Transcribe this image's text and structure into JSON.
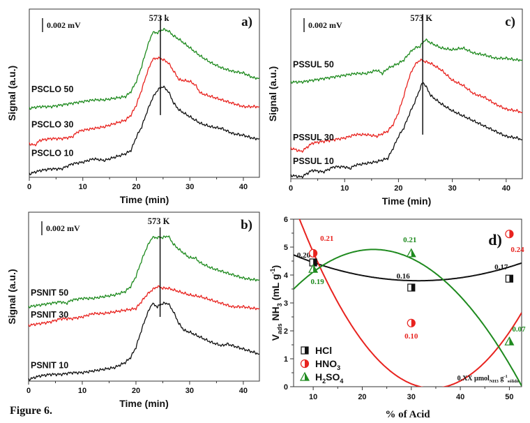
{
  "figure_caption": "Figure 6.",
  "colors": {
    "black": "#111111",
    "red": "#e8231f",
    "green": "#1e8a1e"
  },
  "chart_data": [
    {
      "id": "a",
      "type": "line",
      "panel_label": "a)",
      "xlabel": "Time (min)",
      "ylabel": "Signal  (a.u.)",
      "xlim": [
        0,
        43
      ],
      "xticks": [
        0,
        10,
        20,
        30,
        40
      ],
      "ylim": [
        0,
        1
      ],
      "y_unit_note": "signal normalized to plot height (arbitrary units)",
      "scale_bar_label": "0.002 mV",
      "marker_line": {
        "x": 24.5,
        "label": "573 k",
        "y_from": 0.37,
        "y_to": 0.96
      },
      "series": [
        {
          "name": "PSCLO 50",
          "color": "green",
          "label_at": [
            0,
            0.49
          ],
          "x": [
            0,
            2,
            4,
            6,
            8,
            10,
            12,
            14,
            16,
            18,
            19,
            20,
            21,
            22,
            23,
            24,
            25,
            26,
            27,
            28,
            30,
            32,
            34,
            36,
            38,
            40,
            42,
            43
          ],
          "y": [
            0.41,
            0.42,
            0.42,
            0.43,
            0.44,
            0.45,
            0.46,
            0.46,
            0.47,
            0.48,
            0.51,
            0.57,
            0.66,
            0.77,
            0.86,
            0.86,
            0.88,
            0.87,
            0.84,
            0.82,
            0.77,
            0.72,
            0.68,
            0.65,
            0.63,
            0.62,
            0.59,
            0.59
          ]
        },
        {
          "name": "PSCLO 30",
          "color": "red",
          "label_at": [
            0,
            0.28
          ],
          "x": [
            0,
            1,
            2,
            4,
            6,
            8,
            9,
            10,
            12,
            14,
            16,
            18,
            19,
            20,
            21,
            22,
            23,
            24,
            25,
            26,
            27,
            28,
            30,
            31,
            32,
            34,
            36,
            38,
            40,
            42,
            43
          ],
          "y": [
            0.2,
            0.19,
            0.22,
            0.23,
            0.23,
            0.24,
            0.27,
            0.28,
            0.29,
            0.3,
            0.32,
            0.34,
            0.37,
            0.43,
            0.52,
            0.62,
            0.7,
            0.71,
            0.7,
            0.68,
            0.63,
            0.58,
            0.57,
            0.55,
            0.5,
            0.48,
            0.46,
            0.44,
            0.42,
            0.42,
            0.42
          ]
        },
        {
          "name": "PSCLO 10",
          "color": "black",
          "label_at": [
            0,
            0.11
          ],
          "x": [
            0,
            2,
            4,
            6,
            8,
            10,
            12,
            14,
            16,
            18,
            19,
            20,
            21,
            22,
            23,
            24,
            25,
            26,
            27,
            28,
            30,
            32,
            34,
            36,
            38,
            40,
            42,
            43
          ],
          "y": [
            0.02,
            0.04,
            0.05,
            0.05,
            0.08,
            0.09,
            0.11,
            0.1,
            0.12,
            0.14,
            0.16,
            0.24,
            0.3,
            0.39,
            0.47,
            0.52,
            0.54,
            0.51,
            0.44,
            0.4,
            0.36,
            0.32,
            0.3,
            0.29,
            0.26,
            0.25,
            0.23,
            0.23
          ]
        }
      ]
    },
    {
      "id": "c",
      "type": "line",
      "panel_label": "c)",
      "xlabel": "Time (min)",
      "ylabel": "Signal (a.u.)",
      "xlim": [
        0,
        43
      ],
      "xticks": [
        0,
        10,
        20,
        30,
        40
      ],
      "ylim": [
        0,
        1
      ],
      "y_unit_note": "signal normalized to plot height (arbitrary units)",
      "scale_bar_label": "0.002 mV",
      "marker_line": {
        "x": 24.5,
        "label": "573 K",
        "y_from": 0.26,
        "y_to": 0.97
      },
      "series": [
        {
          "name": "PSSUL 50",
          "color": "green",
          "label_at": [
            0,
            0.64
          ],
          "x": [
            0,
            2,
            4,
            6,
            8,
            10,
            12,
            14,
            16,
            17,
            18,
            20,
            21,
            22,
            23,
            24,
            25,
            26,
            28,
            30,
            32,
            34,
            36,
            38,
            40,
            42,
            43
          ],
          "y": [
            0.57,
            0.57,
            0.58,
            0.59,
            0.6,
            0.61,
            0.62,
            0.62,
            0.64,
            0.62,
            0.65,
            0.68,
            0.7,
            0.74,
            0.77,
            0.78,
            0.82,
            0.8,
            0.77,
            0.76,
            0.77,
            0.74,
            0.73,
            0.71,
            0.71,
            0.7,
            0.7
          ]
        },
        {
          "name": "PSSUL 30",
          "color": "red",
          "label_at": [
            0,
            0.21
          ],
          "x": [
            0,
            2,
            4,
            6,
            8,
            10,
            12,
            14,
            16,
            18,
            19,
            20,
            21,
            22,
            23,
            24,
            25,
            26,
            28,
            30,
            32,
            34,
            36,
            38,
            40,
            42,
            43
          ],
          "y": [
            0.18,
            0.16,
            0.21,
            0.22,
            0.23,
            0.24,
            0.26,
            0.26,
            0.25,
            0.28,
            0.32,
            0.39,
            0.49,
            0.6,
            0.67,
            0.7,
            0.69,
            0.68,
            0.64,
            0.58,
            0.55,
            0.5,
            0.48,
            0.44,
            0.41,
            0.4,
            0.39
          ]
        },
        {
          "name": "PSSUL 10",
          "color": "black",
          "label_at": [
            0,
            0.07
          ],
          "x": [
            0,
            2,
            4,
            6,
            8,
            10,
            11,
            12,
            14,
            16,
            18,
            19,
            20,
            21,
            22,
            23,
            24,
            24.5,
            25,
            26,
            28,
            30,
            32,
            34,
            36,
            38,
            40,
            42,
            43
          ],
          "y": [
            0.02,
            0.01,
            0.05,
            0.04,
            0.07,
            0.07,
            0.06,
            0.08,
            0.09,
            0.1,
            0.12,
            0.18,
            0.25,
            0.3,
            0.38,
            0.45,
            0.53,
            0.57,
            0.55,
            0.49,
            0.44,
            0.4,
            0.37,
            0.34,
            0.31,
            0.28,
            0.25,
            0.24,
            0.23
          ]
        }
      ]
    },
    {
      "id": "b",
      "type": "line",
      "panel_label": "b)",
      "xlabel": "Time (min)",
      "ylabel": "Signal  (a.u.)",
      "xlim": [
        0,
        43
      ],
      "xticks": [
        0,
        10,
        20,
        30,
        40
      ],
      "ylim": [
        0,
        1
      ],
      "y_unit_note": "signal normalized to plot height (arbitrary units)",
      "scale_bar_label": "0.002 mV",
      "marker_line": {
        "x": 24.5,
        "label": "573 K",
        "y_from": 0.38,
        "y_to": 0.91
      },
      "series": [
        {
          "name": "PSNIT 50",
          "color": "green",
          "label_at": [
            0,
            0.49
          ],
          "x": [
            0,
            2,
            4,
            6,
            7,
            8,
            10,
            12,
            14,
            16,
            18,
            19,
            20,
            21,
            22,
            23,
            24,
            25,
            26,
            27,
            28,
            30,
            31,
            32,
            34,
            36,
            38,
            40,
            42,
            43
          ],
          "y": [
            0.44,
            0.45,
            0.46,
            0.47,
            0.46,
            0.48,
            0.49,
            0.49,
            0.5,
            0.51,
            0.53,
            0.56,
            0.62,
            0.71,
            0.79,
            0.85,
            0.85,
            0.85,
            0.86,
            0.81,
            0.78,
            0.73,
            0.73,
            0.7,
            0.67,
            0.65,
            0.63,
            0.61,
            0.6,
            0.6
          ]
        },
        {
          "name": "PSNIT 30",
          "color": "red",
          "label_at": [
            0,
            0.36
          ],
          "x": [
            0,
            2,
            4,
            6,
            8,
            10,
            12,
            14,
            16,
            18,
            20,
            21,
            22,
            23,
            24,
            25,
            26,
            28,
            30,
            32,
            34,
            36,
            38,
            40,
            42,
            43
          ],
          "y": [
            0.33,
            0.34,
            0.35,
            0.37,
            0.37,
            0.38,
            0.4,
            0.4,
            0.41,
            0.42,
            0.43,
            0.47,
            0.51,
            0.54,
            0.56,
            0.55,
            0.55,
            0.53,
            0.51,
            0.5,
            0.48,
            0.46,
            0.44,
            0.44,
            0.43,
            0.43
          ]
        },
        {
          "name": "PSNIT 10",
          "color": "black",
          "label_at": [
            0,
            0.06
          ],
          "x": [
            0,
            2,
            4,
            6,
            8,
            10,
            12,
            14,
            16,
            18,
            19,
            20,
            21,
            22,
            23,
            24,
            25,
            26,
            27,
            28,
            29,
            30,
            32,
            34,
            36,
            37,
            38,
            40,
            42,
            43
          ],
          "y": [
            0.01,
            0.03,
            0.04,
            0.04,
            0.05,
            0.05,
            0.06,
            0.07,
            0.08,
            0.11,
            0.14,
            0.2,
            0.3,
            0.39,
            0.46,
            0.44,
            0.46,
            0.46,
            0.41,
            0.34,
            0.3,
            0.29,
            0.26,
            0.23,
            0.21,
            0.22,
            0.21,
            0.19,
            0.17,
            0.16
          ]
        }
      ]
    },
    {
      "id": "d",
      "type": "scatter",
      "panel_label": "d)",
      "xlabel": "% of Acid",
      "ylabel": "V_ads NH3 (mL g-1)",
      "xlim": [
        6,
        52.5
      ],
      "ylim": [
        0,
        6
      ],
      "xticks": [
        10,
        20,
        30,
        40,
        50
      ],
      "yticks": [
        0,
        1,
        2,
        3,
        4,
        5,
        6
      ],
      "note": "0.XX μmol NH3 g-1 sólido",
      "legend_position": "bottom-left",
      "series": [
        {
          "name": "HCl",
          "legend": "HCl",
          "color": "black",
          "marker": "half-square",
          "x": [
            10,
            30,
            50
          ],
          "y": [
            4.45,
            3.55,
            3.87
          ],
          "labels": [
            "0.20",
            "0.16",
            "0.17"
          ],
          "label_dx": [
            -4,
            -2,
            -2
          ],
          "label_dy": [
            0.28,
            0.43,
            0.43
          ],
          "label_anchor": [
            "end",
            "end",
            "end"
          ],
          "fit_coeffs_quadratic": [
            5.209,
            -0.0899,
            0.00143
          ]
        },
        {
          "name": "HNO3",
          "legend": "HNO3",
          "color": "red",
          "marker": "half-circle",
          "x": [
            10,
            30,
            50
          ],
          "y": [
            4.78,
            2.28,
            5.47
          ],
          "labels": [
            "0.21",
            "0.10",
            "0.24"
          ],
          "label_dx": [
            10,
            0,
            2
          ],
          "label_dy": [
            0.55,
            -0.45,
            -0.55
          ],
          "label_anchor": [
            "start",
            "middle",
            "start"
          ],
          "fit_coeffs_quadratic": [
            9.6437,
            -0.5644,
            0.008213
          ]
        },
        {
          "name": "H2SO4",
          "legend": "H2SO4",
          "color": "green",
          "marker": "half-triangle",
          "x": [
            10,
            30,
            50
          ],
          "y": [
            4.22,
            4.78,
            1.62
          ],
          "labels": [
            "0.19",
            "0.21",
            "0.07"
          ],
          "label_dx": [
            6,
            -2,
            4
          ],
          "label_dy": [
            -0.45,
            0.5,
            0.45
          ],
          "label_anchor": [
            "middle",
            "middle",
            "start"
          ],
          "fit_coeffs_quadratic": [
            2.2575,
            0.2385,
            -0.00535
          ]
        }
      ]
    }
  ]
}
